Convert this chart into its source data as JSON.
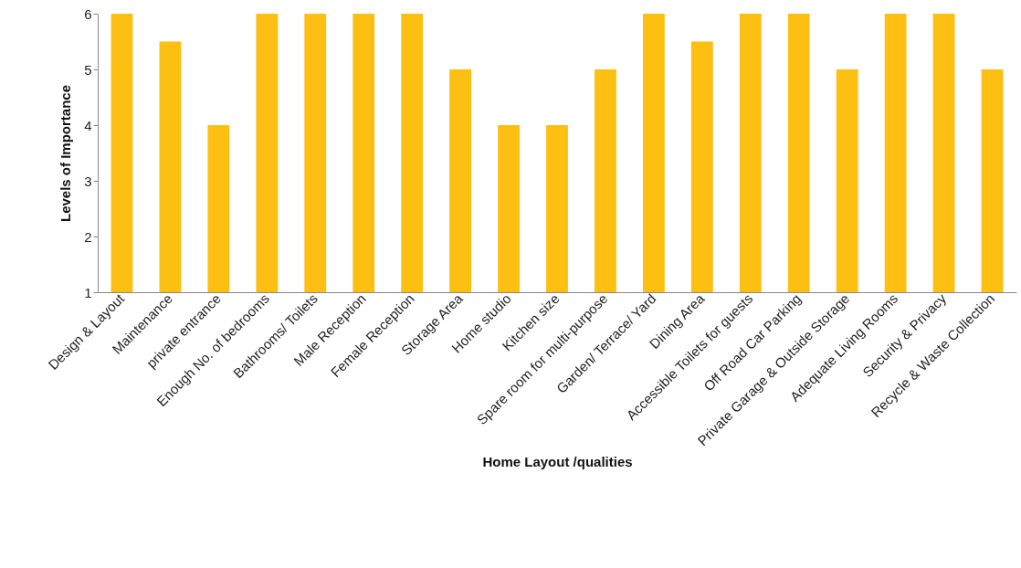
{
  "chart_data": {
    "type": "bar",
    "xlabel": "Home Layout /qualities",
    "ylabel": "Levels of Importance",
    "categories": [
      "Design & Layout",
      "Maintenance",
      "private entrance",
      "Enough No. of bedrooms",
      "Bathrooms/ Toilets",
      "Male Reception",
      "Female Reception",
      "Storage Area",
      "Home studio",
      "Kitchen size",
      "Spare room  for multi-purpose",
      "Garden/ Terrace/ Yard",
      "Dining Area",
      "Accessible Toilets for guests",
      "Off Road Car Parking",
      "Private Garage & Outside Storage",
      "Adequate Living Rooms",
      "Security & Privacy",
      "Recycle & Waste Collection"
    ],
    "values": [
      6,
      5.5,
      4,
      6,
      6,
      6,
      6,
      5,
      4,
      4,
      5,
      6,
      5.5,
      6,
      6,
      5,
      6,
      6,
      5
    ],
    "color": "#fdbf12",
    "ylim": [
      1,
      6
    ],
    "yticks": [
      1,
      2,
      3,
      4,
      5,
      6
    ],
    "grid": false
  }
}
